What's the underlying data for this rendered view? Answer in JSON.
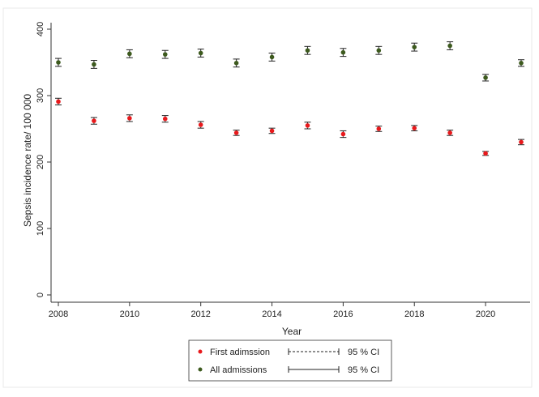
{
  "chart_data": {
    "type": "scatter",
    "xlabel": "Year",
    "ylabel": "Sepsis incidence rate/ 100 000",
    "x": [
      2008,
      2009,
      2010,
      2011,
      2012,
      2013,
      2014,
      2015,
      2016,
      2017,
      2018,
      2019,
      2020,
      2021
    ],
    "x_ticks": [
      "2008",
      "2010",
      "2012",
      "2014",
      "2016",
      "2018",
      "2020"
    ],
    "y_ticks": [
      "0",
      "100",
      "200",
      "300",
      "400"
    ],
    "xlim": [
      2008,
      2021
    ],
    "ylim": [
      0,
      400
    ],
    "grid": false,
    "legend_position": "bottom",
    "series": [
      {
        "name": "First adimssion",
        "color": "#e8191c",
        "ci_style": "dashed",
        "ci_label": "95 % CI",
        "values": [
          291,
          262,
          266,
          265,
          256,
          244,
          247,
          255,
          242,
          250,
          251,
          244,
          213,
          230
        ],
        "ci_low": [
          286,
          257,
          261,
          260,
          251,
          240,
          243,
          250,
          237,
          246,
          247,
          240,
          210,
          226
        ],
        "ci_high": [
          296,
          267,
          271,
          270,
          261,
          248,
          251,
          260,
          247,
          254,
          255,
          248,
          216,
          234
        ]
      },
      {
        "name": "All admissions",
        "color": "#3d5a1e",
        "ci_style": "solid",
        "ci_label": "95 % CI",
        "values": [
          350,
          347,
          363,
          362,
          364,
          349,
          358,
          368,
          365,
          368,
          373,
          375,
          327,
          349
        ],
        "ci_low": [
          344,
          341,
          357,
          356,
          358,
          343,
          352,
          362,
          359,
          362,
          367,
          369,
          322,
          344
        ],
        "ci_high": [
          356,
          353,
          369,
          368,
          370,
          355,
          364,
          374,
          371,
          374,
          379,
          381,
          332,
          354
        ]
      }
    ]
  }
}
